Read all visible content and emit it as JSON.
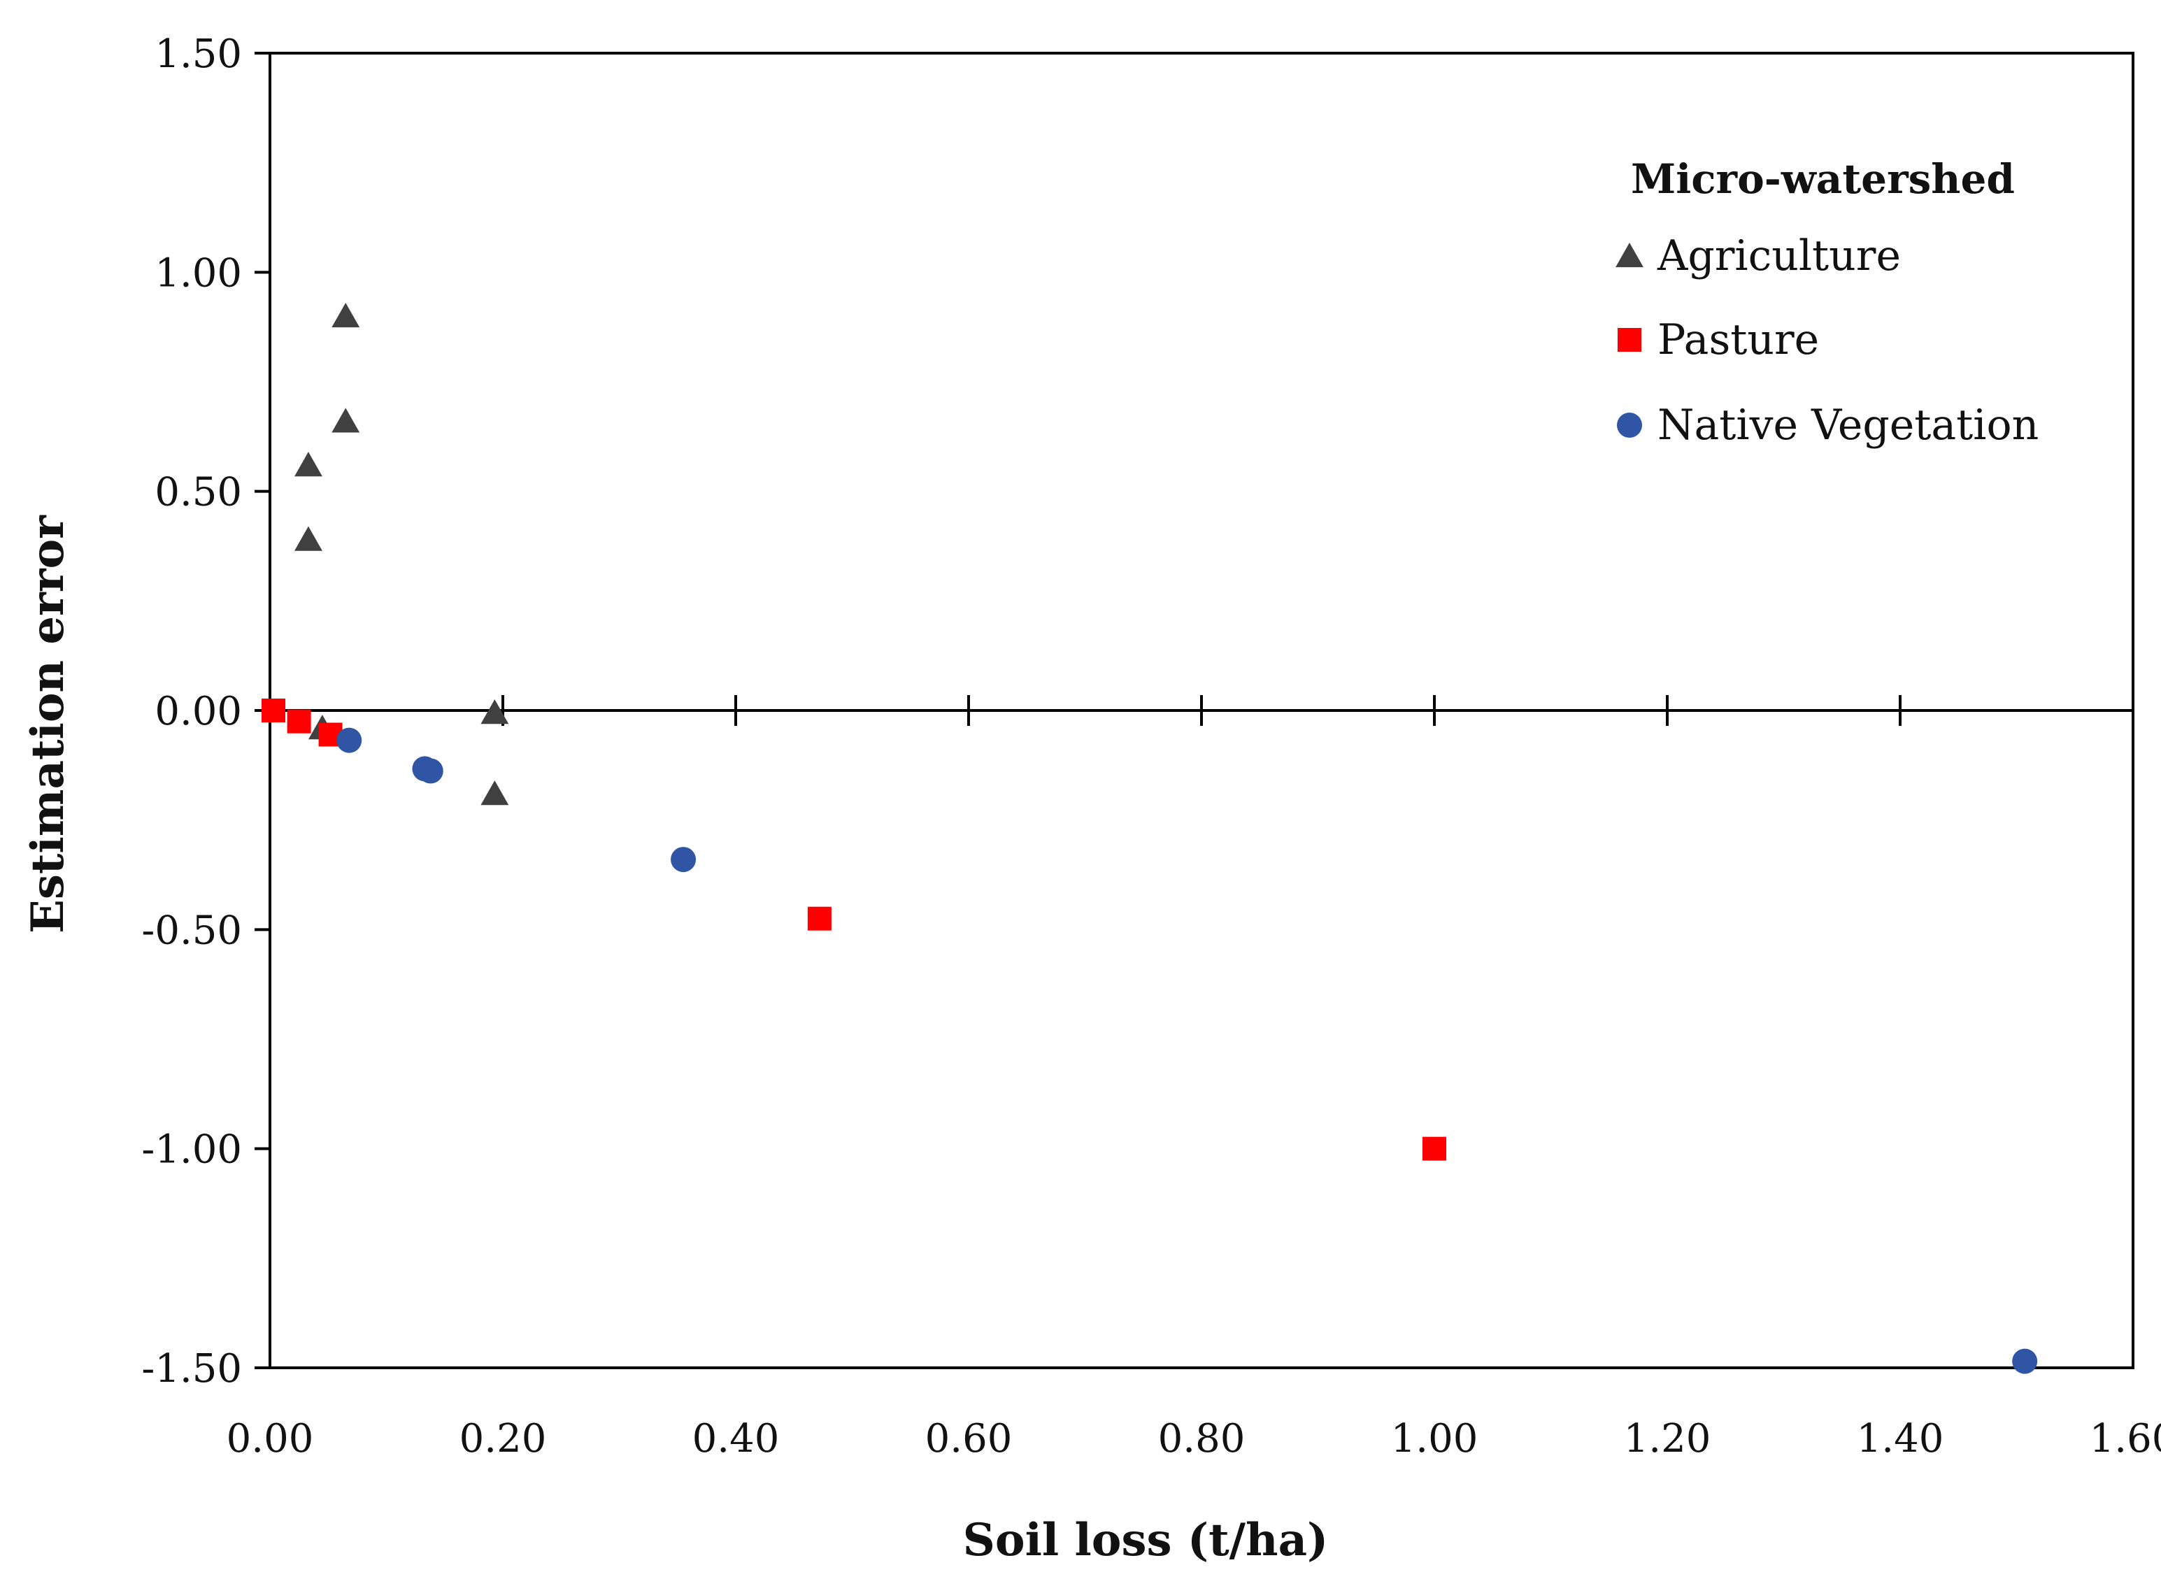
{
  "chart_data": {
    "type": "scatter",
    "title": "",
    "xlabel": "Soil loss (t/ha)",
    "ylabel": "Estimation error",
    "xlim": [
      0.0,
      1.6
    ],
    "ylim": [
      -1.5,
      1.5
    ],
    "x_ticks": [
      "0.00",
      "0.20",
      "0.40",
      "0.60",
      "0.80",
      "1.00",
      "1.20",
      "1.40",
      "1.60"
    ],
    "y_ticks": [
      "1.50",
      "1.00",
      "0.50",
      "0.00",
      "-0.50",
      "-1.00",
      "-1.50"
    ],
    "x_tick_values": [
      0.0,
      0.2,
      0.4,
      0.6,
      0.8,
      1.0,
      1.2,
      1.4,
      1.6
    ],
    "y_tick_values": [
      1.5,
      1.0,
      0.5,
      0.0,
      -0.5,
      -1.0,
      -1.5
    ],
    "grid": false,
    "legend_title": "Micro-watershed",
    "legend_position": "top-right",
    "series": [
      {
        "name": "Agriculture",
        "marker": "triangle",
        "color": "#404040",
        "points": [
          {
            "x": 0.065,
            "y": 0.9
          },
          {
            "x": 0.065,
            "y": 0.66
          },
          {
            "x": 0.033,
            "y": 0.56
          },
          {
            "x": 0.033,
            "y": 0.39
          },
          {
            "x": 0.045,
            "y": -0.04
          },
          {
            "x": 0.193,
            "y": -0.005
          },
          {
            "x": 0.193,
            "y": -0.19
          }
        ]
      },
      {
        "name": "Pasture",
        "marker": "square",
        "color": "#ff0000",
        "points": [
          {
            "x": 0.003,
            "y": 0.0
          },
          {
            "x": 0.025,
            "y": -0.025
          },
          {
            "x": 0.052,
            "y": -0.055
          },
          {
            "x": 0.472,
            "y": -0.475
          },
          {
            "x": 1.0,
            "y": -1.0
          }
        ]
      },
      {
        "name": "Native Vegetation",
        "marker": "circle",
        "color": "#2f55a4",
        "points": [
          {
            "x": 0.068,
            "y": -0.068
          },
          {
            "x": 0.133,
            "y": -0.133
          },
          {
            "x": 0.138,
            "y": -0.138
          },
          {
            "x": 0.355,
            "y": -0.34
          },
          {
            "x": 1.507,
            "y": -1.485
          }
        ]
      }
    ]
  }
}
